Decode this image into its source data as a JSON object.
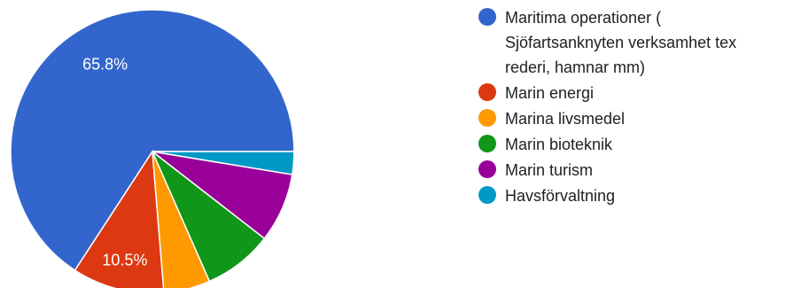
{
  "chart_data": {
    "type": "pie",
    "slices": [
      {
        "label": "Maritima operationer (\nSjöfartsanknyten verksamhet tex\nrederi, hamnar mm)",
        "value": 65.8,
        "display": "65.8%",
        "color": "#3366cc"
      },
      {
        "label": "Marin energi",
        "value": 10.5,
        "display": "10.5%",
        "color": "#dc3912"
      },
      {
        "label": "Marina livsmedel",
        "value": 5.3,
        "display": "",
        "color": "#ff9900"
      },
      {
        "label": "Marin bioteknik",
        "value": 7.9,
        "display": "",
        "color": "#109618"
      },
      {
        "label": "Marin turism",
        "value": 7.9,
        "display": "",
        "color": "#990099"
      },
      {
        "label": "Havsförvaltning",
        "value": 2.6,
        "display": "",
        "color": "#0099c6"
      }
    ],
    "start": "3 o'clock, counter-clockwise",
    "legend_position": "right"
  }
}
